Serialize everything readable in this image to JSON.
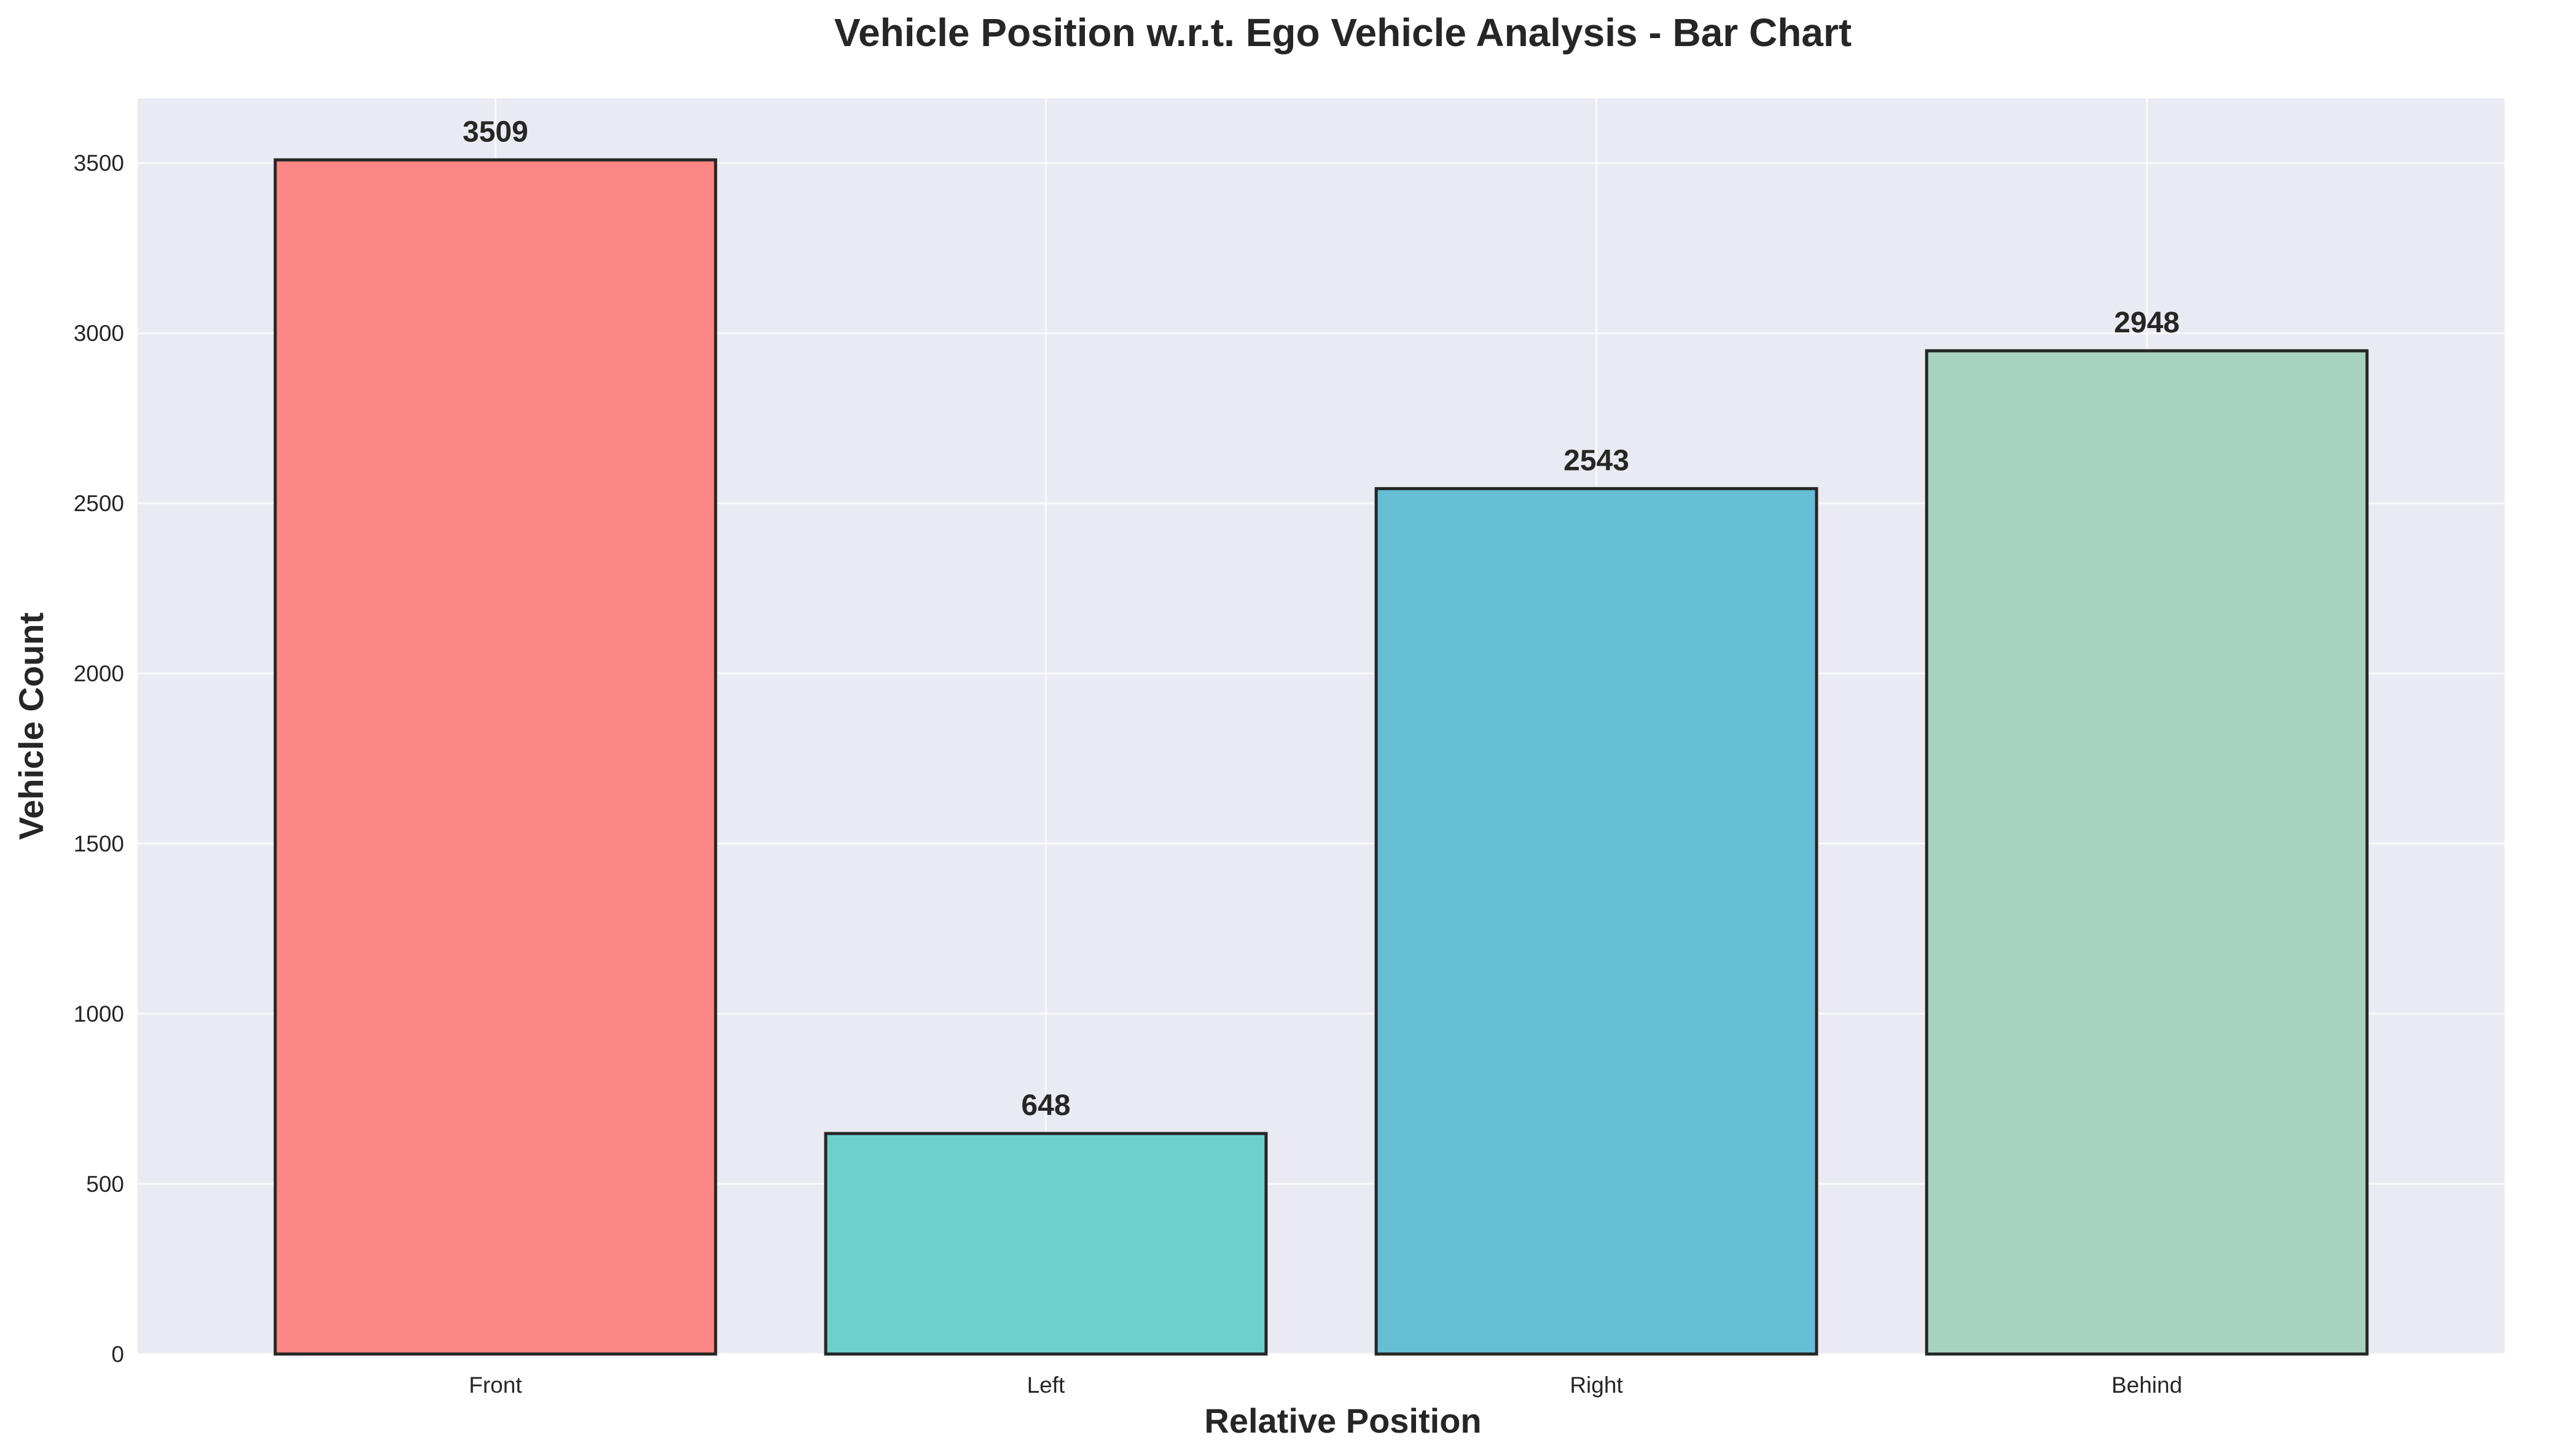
{
  "chart_data": {
    "type": "bar",
    "title": "Vehicle Position w.r.t. Ego Vehicle Analysis - Bar Chart",
    "xlabel": "Relative Position",
    "ylabel": "Vehicle Count",
    "categories": [
      "Front",
      "Left",
      "Right",
      "Behind"
    ],
    "values": [
      3509,
      648,
      2543,
      2948
    ],
    "value_labels": [
      "3509",
      "648",
      "2543",
      "2948"
    ],
    "colors": [
      "#fd8686",
      "#6ed0cd",
      "#66bfd5",
      "#a8d2c0"
    ],
    "ylim": [
      0,
      3690
    ],
    "yticks": [
      0,
      500,
      1000,
      1500,
      2000,
      2500,
      3000,
      3500
    ],
    "ytick_labels": [
      "0",
      "500",
      "1000",
      "1500",
      "2000",
      "2500",
      "3000",
      "3500"
    ],
    "grid": true,
    "legend": false,
    "edge_color": "#262626",
    "background_color": "#eaeaf2"
  }
}
